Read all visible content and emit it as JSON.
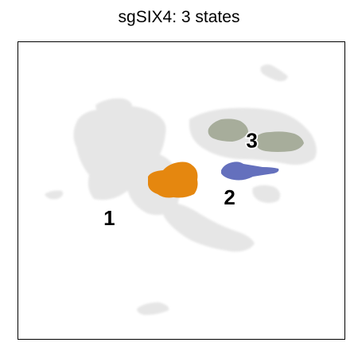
{
  "title": "sgSIX4: 3 states",
  "chart_data": {
    "type": "scatter",
    "title": "sgSIX4: 3 states",
    "xlabel": "",
    "ylabel": "",
    "xticks": [],
    "yticks": [],
    "grid": false,
    "legend": "none",
    "background_color": "#e6e6e6",
    "states": [
      {
        "label": "1",
        "color": "#e5870f",
        "centroid": [
          -1.6,
          -0.6
        ]
      },
      {
        "label": "2",
        "color": "#6470bd",
        "centroid": [
          1.1,
          -0.2
        ]
      },
      {
        "label": "3",
        "color": "#a7ad9b",
        "centroid": [
          1.6,
          0.9
        ]
      }
    ]
  }
}
